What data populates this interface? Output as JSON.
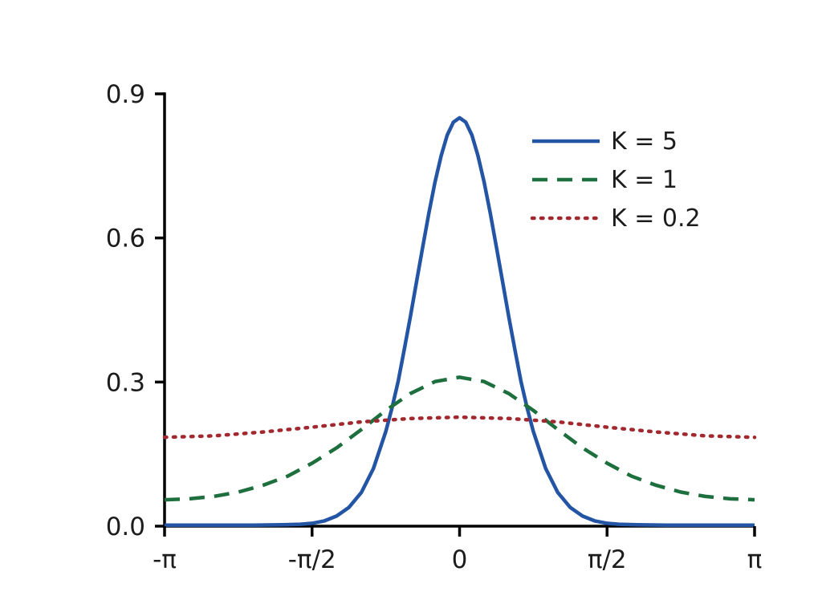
{
  "figure": {
    "background": "#ffffff",
    "text_color": "#1c1c1c",
    "axis_color": "#000000"
  },
  "chart_data": {
    "type": "line",
    "title": "",
    "xlabel": "",
    "ylabel": "",
    "grid": false,
    "legend": {
      "position": "upper-right"
    },
    "x_axis": {
      "unit": "pi_radians",
      "min": -1,
      "max": 1,
      "ticks": [
        {
          "value": -1,
          "label": "-π"
        },
        {
          "value": -0.5,
          "label": "-π/2"
        },
        {
          "value": 0,
          "label": "0"
        },
        {
          "value": 0.5,
          "label": "π/2"
        },
        {
          "value": 1,
          "label": "π"
        }
      ]
    },
    "y_axis": {
      "min": 0,
      "max": 0.9,
      "ticks": [
        {
          "value": 0.0,
          "label": "0.0"
        },
        {
          "value": 0.3,
          "label": "0.3"
        },
        {
          "value": 0.6,
          "label": "0.6"
        },
        {
          "value": 0.9,
          "label": "0.9"
        }
      ]
    },
    "series": [
      {
        "name": "K = 5",
        "color": "#2355a4",
        "style": "solid",
        "points": [
          [
            -1,
            0.002
          ],
          [
            -0.7,
            0.002
          ],
          [
            -0.6,
            0.003
          ],
          [
            -0.54,
            0.004
          ],
          [
            -0.5,
            0.006
          ],
          [
            -0.458,
            0.011
          ],
          [
            -0.417,
            0.021
          ],
          [
            -0.375,
            0.039
          ],
          [
            -0.333,
            0.07
          ],
          [
            -0.292,
            0.12
          ],
          [
            -0.25,
            0.197
          ],
          [
            -0.229,
            0.246
          ],
          [
            -0.208,
            0.302
          ],
          [
            -0.188,
            0.366
          ],
          [
            -0.167,
            0.435
          ],
          [
            -0.146,
            0.508
          ],
          [
            -0.125,
            0.581
          ],
          [
            -0.104,
            0.652
          ],
          [
            -0.083,
            0.717
          ],
          [
            -0.062,
            0.772
          ],
          [
            -0.042,
            0.814
          ],
          [
            -0.021,
            0.841
          ],
          [
            0,
            0.85
          ],
          [
            0.021,
            0.841
          ],
          [
            0.042,
            0.814
          ],
          [
            0.062,
            0.772
          ],
          [
            0.083,
            0.717
          ],
          [
            0.104,
            0.652
          ],
          [
            0.125,
            0.581
          ],
          [
            0.146,
            0.508
          ],
          [
            0.167,
            0.435
          ],
          [
            0.188,
            0.366
          ],
          [
            0.208,
            0.302
          ],
          [
            0.229,
            0.246
          ],
          [
            0.25,
            0.197
          ],
          [
            0.292,
            0.12
          ],
          [
            0.333,
            0.07
          ],
          [
            0.375,
            0.039
          ],
          [
            0.417,
            0.021
          ],
          [
            0.458,
            0.011
          ],
          [
            0.5,
            0.006
          ],
          [
            0.54,
            0.004
          ],
          [
            0.6,
            0.003
          ],
          [
            0.7,
            0.002
          ],
          [
            1,
            0.002
          ]
        ]
      },
      {
        "name": "K = 1",
        "color": "#1e6f3e",
        "style": "dashed",
        "points": [
          [
            -1,
            0.055
          ],
          [
            -0.917,
            0.057
          ],
          [
            -0.833,
            0.062
          ],
          [
            -0.75,
            0.071
          ],
          [
            -0.667,
            0.085
          ],
          [
            -0.583,
            0.104
          ],
          [
            -0.5,
            0.131
          ],
          [
            -0.417,
            0.163
          ],
          [
            -0.333,
            0.201
          ],
          [
            -0.25,
            0.241
          ],
          [
            -0.167,
            0.276
          ],
          [
            -0.083,
            0.301
          ],
          [
            0,
            0.31
          ],
          [
            0.083,
            0.301
          ],
          [
            0.167,
            0.276
          ],
          [
            0.25,
            0.241
          ],
          [
            0.333,
            0.201
          ],
          [
            0.417,
            0.163
          ],
          [
            0.5,
            0.131
          ],
          [
            0.583,
            0.104
          ],
          [
            0.667,
            0.085
          ],
          [
            0.75,
            0.071
          ],
          [
            0.833,
            0.062
          ],
          [
            0.917,
            0.057
          ],
          [
            1,
            0.055
          ]
        ]
      },
      {
        "name": "K = 0.2",
        "color": "#a1282e",
        "style": "dotted",
        "points": [
          [
            -1,
            0.185
          ],
          [
            -0.833,
            0.188
          ],
          [
            -0.667,
            0.196
          ],
          [
            -0.5,
            0.206
          ],
          [
            -0.333,
            0.217
          ],
          [
            -0.167,
            0.224
          ],
          [
            0,
            0.227
          ],
          [
            0.167,
            0.224
          ],
          [
            0.333,
            0.217
          ],
          [
            0.5,
            0.206
          ],
          [
            0.667,
            0.196
          ],
          [
            0.833,
            0.188
          ],
          [
            1,
            0.185
          ]
        ]
      }
    ]
  }
}
